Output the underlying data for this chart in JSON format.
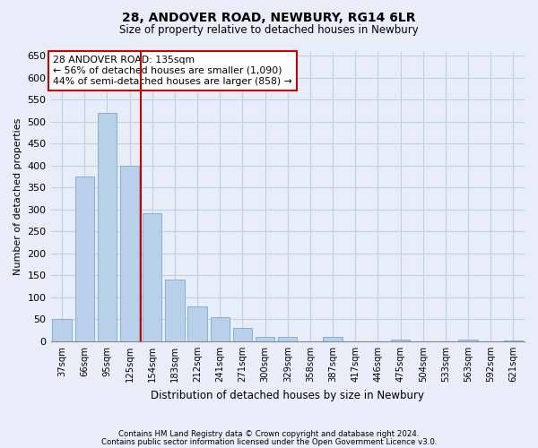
{
  "title1": "28, ANDOVER ROAD, NEWBURY, RG14 6LR",
  "title2": "Size of property relative to detached houses in Newbury",
  "xlabel": "Distribution of detached houses by size in Newbury",
  "ylabel": "Number of detached properties",
  "categories": [
    "37sqm",
    "66sqm",
    "95sqm",
    "125sqm",
    "154sqm",
    "183sqm",
    "212sqm",
    "241sqm",
    "271sqm",
    "300sqm",
    "329sqm",
    "358sqm",
    "387sqm",
    "417sqm",
    "446sqm",
    "475sqm",
    "504sqm",
    "533sqm",
    "563sqm",
    "592sqm",
    "621sqm"
  ],
  "values": [
    50,
    375,
    520,
    400,
    292,
    140,
    80,
    55,
    30,
    11,
    11,
    0,
    11,
    0,
    0,
    3,
    0,
    0,
    3,
    0,
    2
  ],
  "bar_color": "#b8d0ea",
  "bar_edge_color": "#7aaace",
  "vline_index": 3.5,
  "vline_color": "#cc0000",
  "annotation_title": "28 ANDOVER ROAD: 135sqm",
  "annotation_line1": "← 56% of detached houses are smaller (1,090)",
  "annotation_line2": "44% of semi-detached houses are larger (858) →",
  "annotation_box_color": "#ffffff",
  "annotation_box_edge": "#cc0000",
  "ylim": [
    0,
    660
  ],
  "yticks": [
    0,
    50,
    100,
    150,
    200,
    250,
    300,
    350,
    400,
    450,
    500,
    550,
    600,
    650
  ],
  "footer1": "Contains HM Land Registry data © Crown copyright and database right 2024.",
  "footer2": "Contains public sector information licensed under the Open Government Licence v3.0.",
  "bg_color": "#e8eef8",
  "plot_bg_color": "#e8eef8",
  "grid_color": "#c5cfe0"
}
